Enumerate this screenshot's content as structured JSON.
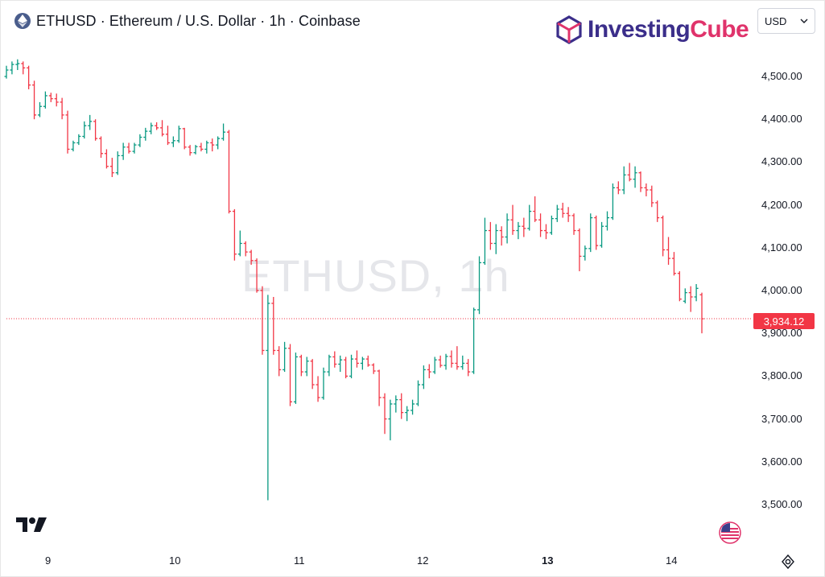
{
  "header": {
    "title": "ETHUSD · Ethereum / U.S. Dollar · 1h · Coinbase",
    "icon": "ethereum-icon"
  },
  "logo": {
    "part1": "Investing",
    "part2": "Cube"
  },
  "currency_select": {
    "value": "USD"
  },
  "watermark": "ETHUSD, 1h",
  "last_price": "3,934.12",
  "colors": {
    "up": "#089981",
    "down": "#f23645",
    "text": "#131722",
    "grid": "#f0f3fa"
  },
  "chart_data": {
    "type": "ohlc",
    "y_axis": {
      "ticks": [
        "4,500.00",
        "4,400.00",
        "4,300.00",
        "4,200.00",
        "4,100.00",
        "4,000.00",
        "3,900.00",
        "3,800.00",
        "3,700.00",
        "3,600.00",
        "3,500.00"
      ],
      "tick_values": [
        4500,
        4400,
        4300,
        4200,
        4100,
        4000,
        3900,
        3800,
        3700,
        3600,
        3500
      ],
      "ylim": [
        3460,
        4580
      ]
    },
    "x_axis": {
      "ticks": [
        "9",
        "10",
        "11",
        "12",
        "13",
        "14"
      ],
      "bold": [
        false,
        false,
        false,
        false,
        true,
        false
      ]
    },
    "last_price_value": 3934.12,
    "candles": [
      [
        4500,
        4525,
        4495,
        4515
      ],
      [
        4515,
        4535,
        4505,
        4528
      ],
      [
        4528,
        4540,
        4515,
        4530
      ],
      [
        4530,
        4535,
        4505,
        4520
      ],
      [
        4520,
        4525,
        4470,
        4480
      ],
      [
        4480,
        4490,
        4400,
        4410
      ],
      [
        4410,
        4440,
        4405,
        4430
      ],
      [
        4430,
        4465,
        4425,
        4455
      ],
      [
        4455,
        4462,
        4440,
        4448
      ],
      [
        4448,
        4460,
        4430,
        4440
      ],
      [
        4440,
        4450,
        4400,
        4410
      ],
      [
        4410,
        4420,
        4320,
        4330
      ],
      [
        4330,
        4350,
        4325,
        4345
      ],
      [
        4345,
        4365,
        4340,
        4360
      ],
      [
        4360,
        4395,
        4355,
        4385
      ],
      [
        4385,
        4410,
        4375,
        4395
      ],
      [
        4395,
        4400,
        4350,
        4355
      ],
      [
        4355,
        4360,
        4310,
        4320
      ],
      [
        4320,
        4330,
        4285,
        4290
      ],
      [
        4290,
        4310,
        4265,
        4275
      ],
      [
        4275,
        4325,
        4270,
        4315
      ],
      [
        4315,
        4345,
        4305,
        4335
      ],
      [
        4335,
        4345,
        4320,
        4325
      ],
      [
        4325,
        4345,
        4320,
        4340
      ],
      [
        4340,
        4365,
        4335,
        4358
      ],
      [
        4358,
        4380,
        4350,
        4372
      ],
      [
        4372,
        4392,
        4365,
        4385
      ],
      [
        4385,
        4393,
        4375,
        4380
      ],
      [
        4380,
        4398,
        4360,
        4365
      ],
      [
        4365,
        4385,
        4340,
        4345
      ],
      [
        4345,
        4360,
        4335,
        4350
      ],
      [
        4350,
        4385,
        4345,
        4378
      ],
      [
        4378,
        4380,
        4330,
        4335
      ],
      [
        4335,
        4340,
        4315,
        4322
      ],
      [
        4322,
        4340,
        4318,
        4336
      ],
      [
        4336,
        4345,
        4325,
        4330
      ],
      [
        4330,
        4350,
        4320,
        4345
      ],
      [
        4345,
        4355,
        4325,
        4340
      ],
      [
        4340,
        4360,
        4330,
        4355
      ],
      [
        4355,
        4390,
        4350,
        4370
      ],
      [
        4370,
        4375,
        4180,
        4185
      ],
      [
        4185,
        4190,
        4070,
        4085
      ],
      [
        4085,
        4140,
        4080,
        4110
      ],
      [
        4110,
        4115,
        4080,
        4090
      ],
      [
        4090,
        4095,
        4060,
        4070
      ],
      [
        4070,
        4075,
        3995,
        4000
      ],
      [
        4000,
        4010,
        3850,
        3860
      ],
      [
        3860,
        3990,
        3510,
        3970
      ],
      [
        3970,
        3985,
        3850,
        3860
      ],
      [
        3860,
        3870,
        3800,
        3815
      ],
      [
        3815,
        3880,
        3810,
        3865
      ],
      [
        3865,
        3875,
        3730,
        3740
      ],
      [
        3740,
        3855,
        3735,
        3845
      ],
      [
        3845,
        3850,
        3800,
        3810
      ],
      [
        3810,
        3845,
        3800,
        3835
      ],
      [
        3835,
        3840,
        3770,
        3780
      ],
      [
        3780,
        3800,
        3740,
        3750
      ],
      [
        3750,
        3820,
        3745,
        3810
      ],
      [
        3810,
        3850,
        3800,
        3845
      ],
      [
        3845,
        3858,
        3820,
        3828
      ],
      [
        3828,
        3848,
        3810,
        3838
      ],
      [
        3838,
        3845,
        3795,
        3800
      ],
      [
        3800,
        3850,
        3795,
        3840
      ],
      [
        3840,
        3860,
        3820,
        3830
      ],
      [
        3830,
        3845,
        3815,
        3840
      ],
      [
        3840,
        3848,
        3822,
        3826
      ],
      [
        3826,
        3830,
        3805,
        3812
      ],
      [
        3812,
        3815,
        3730,
        3750
      ],
      [
        3750,
        3760,
        3665,
        3700
      ],
      [
        3700,
        3745,
        3650,
        3735
      ],
      [
        3735,
        3755,
        3715,
        3745
      ],
      [
        3745,
        3760,
        3700,
        3715
      ],
      [
        3715,
        3730,
        3695,
        3720
      ],
      [
        3720,
        3745,
        3710,
        3735
      ],
      [
        3735,
        3790,
        3730,
        3780
      ],
      [
        3780,
        3825,
        3770,
        3815
      ],
      [
        3815,
        3828,
        3795,
        3810
      ],
      [
        3810,
        3845,
        3805,
        3838
      ],
      [
        3838,
        3848,
        3820,
        3825
      ],
      [
        3825,
        3852,
        3815,
        3846
      ],
      [
        3846,
        3860,
        3820,
        3830
      ],
      [
        3830,
        3870,
        3815,
        3822
      ],
      [
        3822,
        3848,
        3815,
        3830
      ],
      [
        3830,
        3840,
        3800,
        3810
      ],
      [
        3810,
        3960,
        3805,
        3955
      ],
      [
        3955,
        4080,
        3945,
        4065
      ],
      [
        4065,
        4170,
        4060,
        4140
      ],
      [
        4140,
        4160,
        4095,
        4110
      ],
      [
        4110,
        4155,
        4085,
        4140
      ],
      [
        4140,
        4150,
        4105,
        4125
      ],
      [
        4125,
        4180,
        4110,
        4165
      ],
      [
        4165,
        4200,
        4130,
        4140
      ],
      [
        4140,
        4160,
        4120,
        4150
      ],
      [
        4150,
        4170,
        4125,
        4145
      ],
      [
        4145,
        4200,
        4140,
        4185
      ],
      [
        4185,
        4220,
        4160,
        4165
      ],
      [
        4165,
        4180,
        4125,
        4140
      ],
      [
        4140,
        4155,
        4120,
        4135
      ],
      [
        4135,
        4175,
        4130,
        4168
      ],
      [
        4168,
        4200,
        4160,
        4190
      ],
      [
        4190,
        4205,
        4170,
        4180
      ],
      [
        4180,
        4195,
        4160,
        4175
      ],
      [
        4175,
        4180,
        4130,
        4140
      ],
      [
        4140,
        4145,
        4045,
        4080
      ],
      [
        4080,
        4105,
        4070,
        4098
      ],
      [
        4098,
        4180,
        4090,
        4170
      ],
      [
        4170,
        4175,
        4095,
        4105
      ],
      [
        4105,
        4160,
        4100,
        4150
      ],
      [
        4150,
        4185,
        4140,
        4170
      ],
      [
        4170,
        4250,
        4165,
        4240
      ],
      [
        4240,
        4255,
        4225,
        4235
      ],
      [
        4235,
        4290,
        4225,
        4270
      ],
      [
        4270,
        4298,
        4255,
        4260
      ],
      [
        4260,
        4290,
        4240,
        4275
      ],
      [
        4275,
        4278,
        4230,
        4240
      ],
      [
        4240,
        4250,
        4220,
        4235
      ],
      [
        4235,
        4245,
        4195,
        4205
      ],
      [
        4205,
        4210,
        4160,
        4170
      ],
      [
        4170,
        4175,
        4080,
        4095
      ],
      [
        4095,
        4125,
        4060,
        4075
      ],
      [
        4075,
        4090,
        4035,
        4040
      ],
      [
        4040,
        4045,
        3975,
        3980
      ],
      [
        3975,
        4005,
        3970,
        3995
      ],
      [
        3995,
        4010,
        3950,
        3985
      ],
      [
        3985,
        4015,
        3975,
        4005
      ],
      [
        3990,
        3995,
        3900,
        3934
      ]
    ]
  }
}
